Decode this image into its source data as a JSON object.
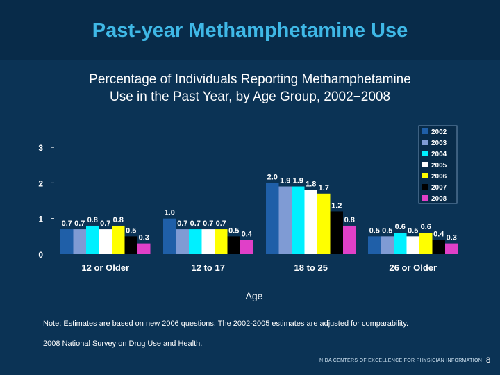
{
  "slide": {
    "title": "Past-year Methamphetamine Use",
    "subtitle_line1": "Percentage of Individuals Reporting Methamphetamine",
    "subtitle_line2": "Use in the Past Year, by Age Group, 2002−2008",
    "note": "Note: Estimates are based on new 2006 questions. The 2002-2005 estimates are adjusted for comparability.",
    "source": "2008 National Survey on Drug Use and Health.",
    "footer": "NIDA CENTERS OF EXCELLENCE FOR PHYSICIAN INFORMATION",
    "page_number": "8"
  },
  "chart_data": {
    "type": "bar",
    "xlabel": "Age",
    "ylabel": "",
    "ylim": [
      0,
      3
    ],
    "yticks": [
      "0",
      "1",
      "2",
      "3"
    ],
    "categories": [
      "12 or Older",
      "12 to 17",
      "18 to 25",
      "26 or Older"
    ],
    "legend_position": "top-right",
    "series": [
      {
        "name": "2002",
        "color": "#1f5fa8",
        "values": [
          0.7,
          1.0,
          2.0,
          0.5
        ],
        "labels": [
          "0.7",
          "1.0",
          "2.0",
          "0.5"
        ]
      },
      {
        "name": "2003",
        "color": "#7f9bd4",
        "values": [
          0.7,
          0.7,
          1.9,
          0.5
        ],
        "labels": [
          "0.7",
          "0.7",
          "1.9",
          "0.5"
        ]
      },
      {
        "name": "2004",
        "color": "#00f0ff",
        "values": [
          0.8,
          0.7,
          1.9,
          0.6
        ],
        "labels": [
          "0.8",
          "0.7",
          "1.9",
          "0.6"
        ]
      },
      {
        "name": "2005",
        "color": "#ffffff",
        "values": [
          0.7,
          0.7,
          1.8,
          0.5
        ],
        "labels": [
          "0.7",
          "0.7",
          "1.8",
          "0.5"
        ]
      },
      {
        "name": "2006",
        "color": "#ffff00",
        "values": [
          0.8,
          0.7,
          1.7,
          0.6
        ],
        "labels": [
          "0.8",
          "0.7",
          "1.7",
          "0.6"
        ]
      },
      {
        "name": "2007",
        "color": "#000000",
        "values": [
          0.5,
          0.5,
          1.2,
          0.4
        ],
        "labels": [
          "0.5",
          "0.5",
          "1.2",
          "0.4"
        ]
      },
      {
        "name": "2008",
        "color": "#e040c8",
        "values": [
          0.3,
          0.4,
          0.8,
          0.3
        ],
        "labels": [
          "0.3",
          "0.4",
          "0.8",
          "0.3"
        ]
      }
    ]
  }
}
